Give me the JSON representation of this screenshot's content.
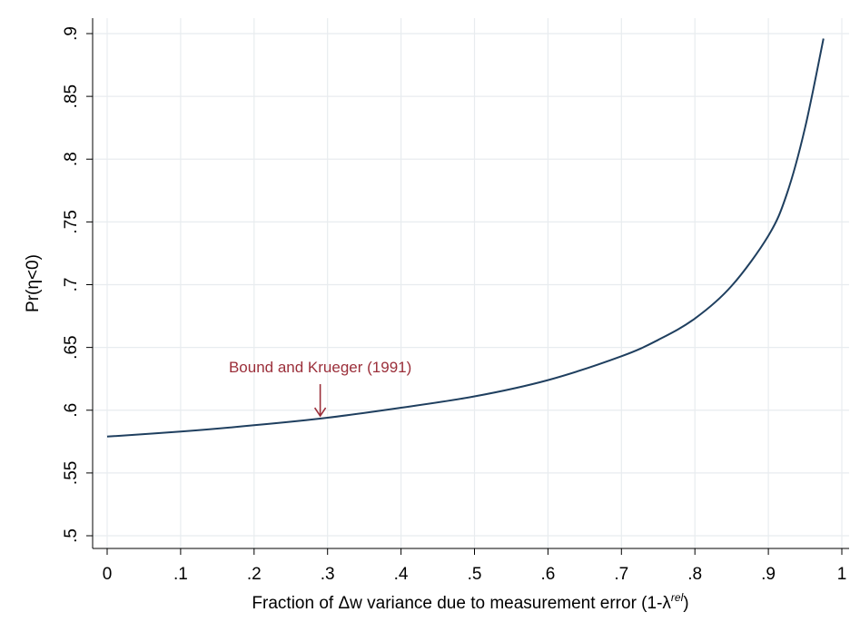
{
  "chart_data": {
    "type": "line",
    "title": "",
    "xlabel": "Fraction of Δw variance due to measurement error (1-λ",
    "xlabel_superscript": "rel",
    "xlabel_suffix": ")",
    "ylabel": "Pr(η<0)",
    "xlim": [
      0,
      1
    ],
    "ylim": [
      0.5,
      0.9
    ],
    "x_ticks": [
      0,
      0.1,
      0.2,
      0.3,
      0.4,
      0.5,
      0.6,
      0.7,
      0.8,
      0.9,
      1
    ],
    "x_tick_labels": [
      "0",
      ".1",
      ".2",
      ".3",
      ".4",
      ".5",
      ".6",
      ".7",
      ".8",
      ".9",
      "1"
    ],
    "y_ticks": [
      0.5,
      0.55,
      0.6,
      0.65,
      0.7,
      0.75,
      0.8,
      0.85,
      0.9
    ],
    "y_tick_labels": [
      ".5",
      ".55",
      ".6",
      ".65",
      ".7",
      ".75",
      ".8",
      ".85",
      ".9"
    ],
    "grid": true,
    "series": [
      {
        "color": "#1f3f5f",
        "x": [
          0,
          0.1,
          0.2,
          0.3,
          0.4,
          0.5,
          0.6,
          0.7,
          0.75,
          0.8,
          0.85,
          0.9,
          0.925,
          0.95,
          0.975
        ],
        "y": [
          0.579,
          0.583,
          0.588,
          0.594,
          0.602,
          0.611,
          0.624,
          0.643,
          0.656,
          0.673,
          0.699,
          0.739,
          0.772,
          0.825,
          0.896
        ]
      }
    ],
    "annotations": [
      {
        "text": "Bound and Krueger (1991)",
        "x": 0.29,
        "y": 0.594,
        "color": "#9b2f3a"
      }
    ]
  }
}
